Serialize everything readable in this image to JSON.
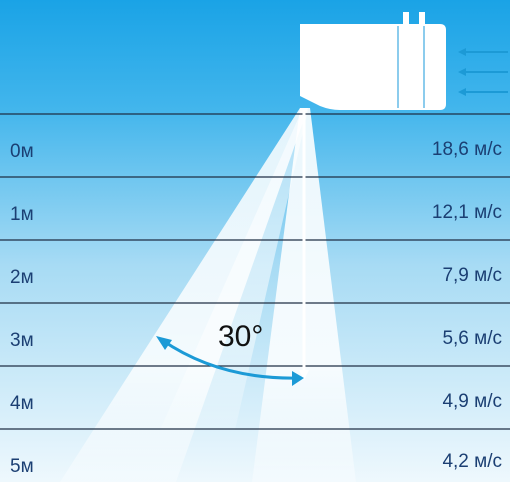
{
  "rows": [
    {
      "distance": "0м",
      "speed": "18,6 м/с"
    },
    {
      "distance": "1м",
      "speed": "12,1 м/с"
    },
    {
      "distance": "2м",
      "speed": "7,9 м/с"
    },
    {
      "distance": "3м",
      "speed": "5,6 м/с"
    },
    {
      "distance": "4м",
      "speed": "4,9 м/с"
    },
    {
      "distance": "5м",
      "speed": "4,2 м/с"
    }
  ],
  "angle_label": "30°",
  "colors": {
    "sky_top": "#1aa3e6",
    "sky_bottom": "#dff1fb",
    "text": "#1b3f73",
    "arrow": "#1c9ad6",
    "line": "#1f2f44"
  }
}
